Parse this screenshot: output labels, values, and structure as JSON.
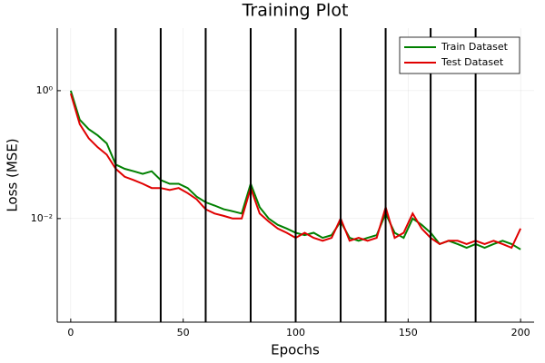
{
  "chart_data": {
    "type": "line",
    "title": "Training Plot",
    "x_label": "Epochs",
    "y_label": "Loss (MSE)",
    "x": [
      0,
      4,
      8,
      12,
      16,
      20,
      24,
      28,
      32,
      36,
      40,
      44,
      48,
      52,
      56,
      60,
      64,
      68,
      72,
      76,
      80,
      84,
      88,
      92,
      96,
      100,
      104,
      108,
      112,
      116,
      120,
      124,
      128,
      132,
      136,
      140,
      144,
      148,
      152,
      156,
      160,
      164,
      168,
      172,
      176,
      180,
      184,
      188,
      192,
      196,
      200
    ],
    "series": [
      {
        "name": "Train Dataset",
        "color": "#008000",
        "values": [
          1.0,
          0.35,
          0.25,
          0.2,
          0.15,
          0.07,
          0.06,
          0.055,
          0.05,
          0.055,
          0.04,
          0.035,
          0.035,
          0.03,
          0.022,
          0.018,
          0.016,
          0.014,
          0.013,
          0.012,
          0.035,
          0.015,
          0.01,
          0.008,
          0.007,
          0.006,
          0.0055,
          0.006,
          0.005,
          0.0055,
          0.009,
          0.005,
          0.0045,
          0.005,
          0.0055,
          0.012,
          0.006,
          0.005,
          0.01,
          0.008,
          0.006,
          0.004,
          0.0045,
          0.004,
          0.0035,
          0.004,
          0.0035,
          0.004,
          0.0045,
          0.004,
          0.0033
        ]
      },
      {
        "name": "Test Dataset",
        "color": "#e00000",
        "values": [
          0.9,
          0.3,
          0.18,
          0.13,
          0.1,
          0.06,
          0.045,
          0.04,
          0.035,
          0.03,
          0.03,
          0.028,
          0.03,
          0.025,
          0.02,
          0.014,
          0.012,
          0.011,
          0.01,
          0.01,
          0.03,
          0.012,
          0.009,
          0.007,
          0.006,
          0.005,
          0.006,
          0.005,
          0.0045,
          0.005,
          0.01,
          0.0045,
          0.005,
          0.0045,
          0.005,
          0.015,
          0.005,
          0.006,
          0.012,
          0.007,
          0.005,
          0.004,
          0.0045,
          0.0045,
          0.004,
          0.0045,
          0.004,
          0.0045,
          0.004,
          0.0035,
          0.007
        ]
      }
    ],
    "vlines": [
      20,
      40,
      60,
      80,
      100,
      120,
      140,
      160,
      180
    ],
    "xlim": [
      -6,
      206
    ],
    "xticks": [
      0,
      50,
      100,
      150,
      200
    ],
    "ylim": [
      0.00024,
      9.5
    ],
    "yticks": [
      {
        "value": 0.01,
        "label": "10⁻²"
      },
      {
        "value": 1,
        "label": "10⁰"
      }
    ],
    "y_scale": "log",
    "grid": true,
    "legend_position": "top-right"
  }
}
